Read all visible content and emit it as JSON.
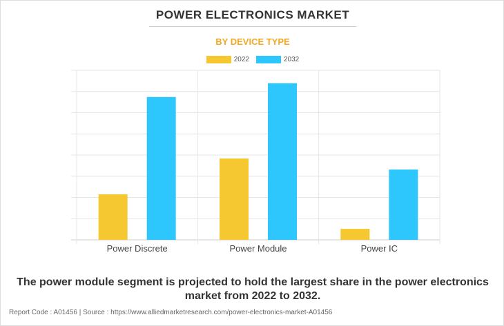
{
  "title": "POWER ELECTRONICS MARKET",
  "subtitle": "BY DEVICE TYPE",
  "caption": "The power module segment is projected to hold the largest share in the power electronics market from 2022 to 2032.",
  "footer": "Report Code : A01456  |  Source : https://www.alliedmarketresearch.com/power-electronics-market-A01456",
  "chart_data": {
    "type": "bar",
    "categories": [
      "Power Discrete",
      "Power Module",
      "Power IC"
    ],
    "series": [
      {
        "name": "2022",
        "color": "#f5c832",
        "values": [
          2.15,
          3.84,
          0.52
        ]
      },
      {
        "name": "2032",
        "color": "#2ec7fd",
        "values": [
          6.74,
          7.39,
          3.32
        ]
      }
    ],
    "ylim": [
      0,
      8
    ],
    "grid": true,
    "legend": "top-center",
    "xlabel": "",
    "ylabel": ""
  }
}
